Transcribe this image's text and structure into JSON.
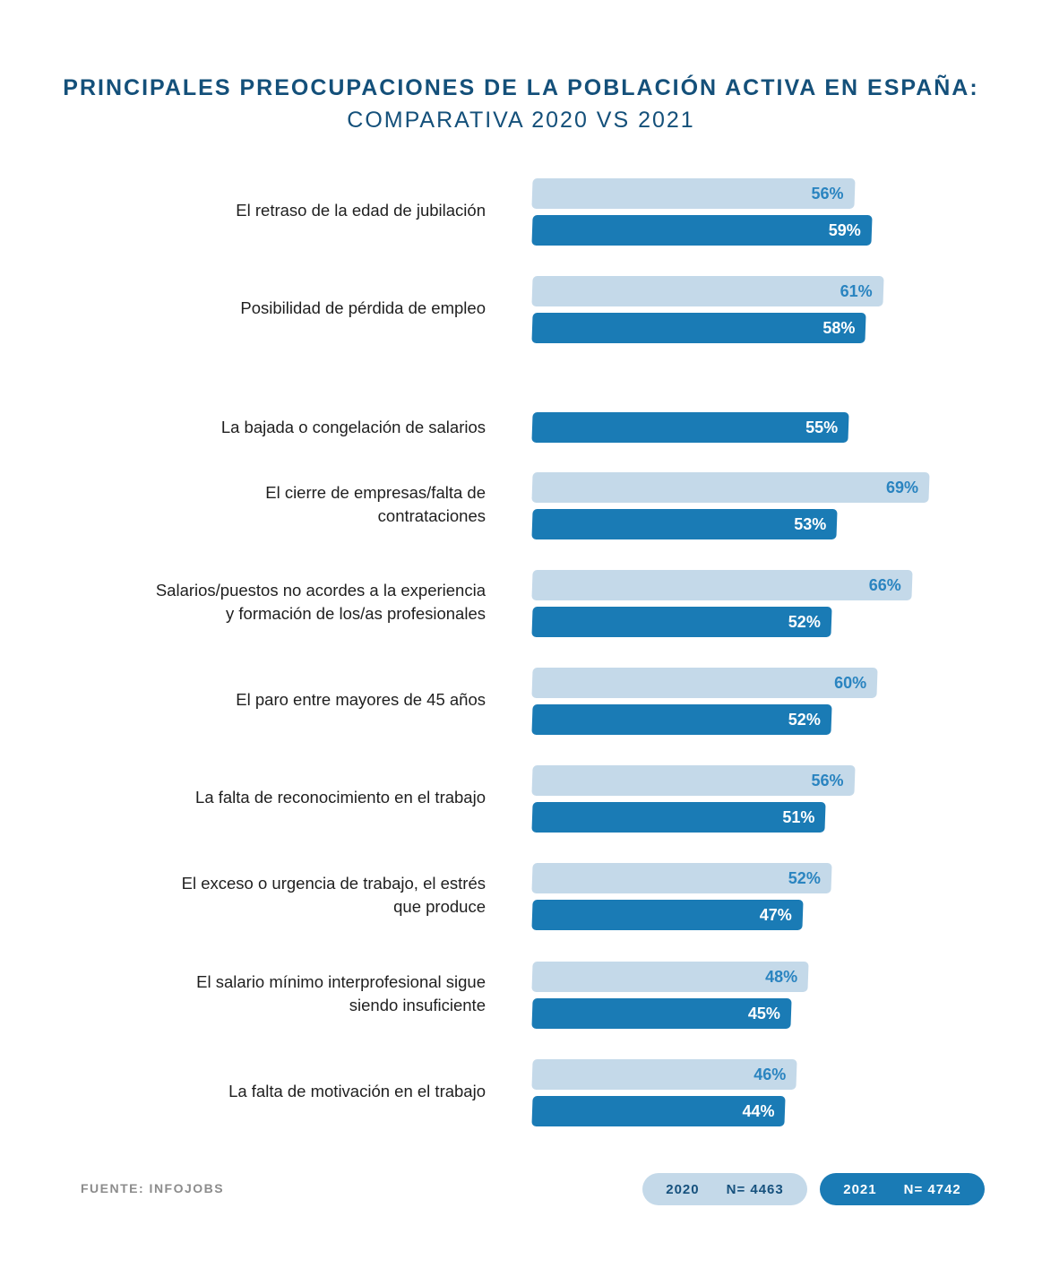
{
  "title": {
    "line1": "PRINCIPALES PREOCUPACIONES DE LA POBLACIÓN ACTIVA EN ESPAÑA:",
    "line2": "COMPARATIVA 2020 VS 2021"
  },
  "source": "FUENTE: INFOJOBS",
  "legend": {
    "y2020": {
      "year": "2020",
      "n": "N= 4463"
    },
    "y2021": {
      "year": "2021",
      "n": "N= 4742"
    }
  },
  "colors": {
    "y2020": "#c4d9e9",
    "y2021": "#1a7bb5",
    "title": "#14507a"
  },
  "chart_data": {
    "type": "bar",
    "orientation": "horizontal",
    "title": "PRINCIPALES PREOCUPACIONES DE LA POBLACIÓN ACTIVA EN ESPAÑA: COMPARATIVA 2020 VS 2021",
    "unit": "%",
    "categories": [
      [
        "El retraso de la edad de jubilación"
      ],
      [
        "Posibilidad de pérdida de empleo"
      ],
      [
        "La bajada o congelación de salarios"
      ],
      [
        "El cierre de empresas/falta de",
        "contrataciones"
      ],
      [
        "Salarios/puestos no acordes a la experiencia",
        "y formación de los/as profesionales"
      ],
      [
        "El paro entre mayores de 45 años"
      ],
      [
        "La falta de reconocimiento en el trabajo"
      ],
      [
        "El exceso o urgencia de trabajo, el estrés",
        "que produce"
      ],
      [
        "El salario mínimo interprofesional sigue",
        "siendo insuficiente"
      ],
      [
        "La falta de motivación en el trabajo"
      ]
    ],
    "series": [
      {
        "name": "2020",
        "values": [
          56,
          61,
          null,
          69,
          66,
          60,
          56,
          52,
          48,
          46
        ]
      },
      {
        "name": "2021",
        "values": [
          59,
          58,
          55,
          53,
          52,
          52,
          51,
          47,
          45,
          44
        ]
      }
    ],
    "xlim": [
      0,
      70
    ],
    "legend_position": "bottom-right"
  }
}
